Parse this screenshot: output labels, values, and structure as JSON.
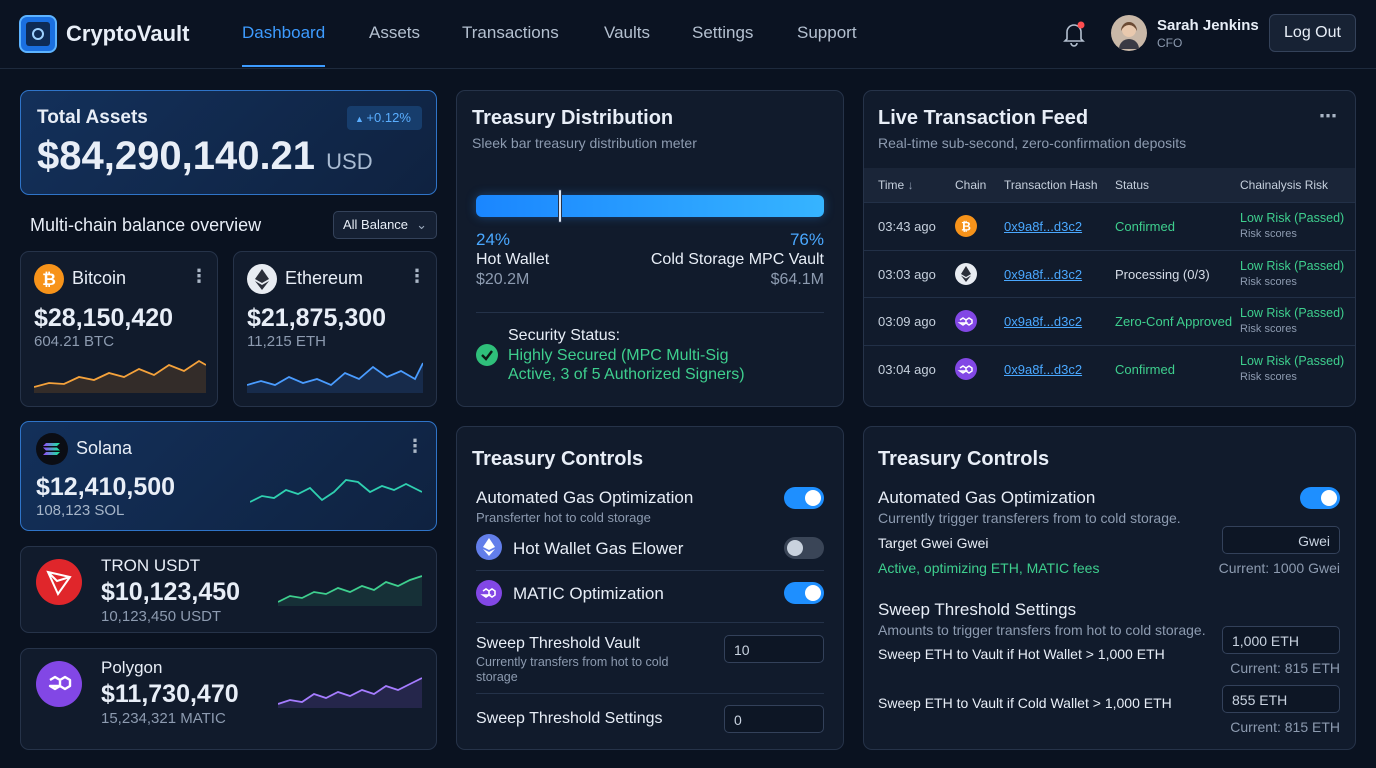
{
  "header": {
    "brand": "CryptoVault",
    "nav": [
      "Dashboard",
      "Assets",
      "Transactions",
      "Vaults",
      "Settings",
      "Support"
    ],
    "active_index": 0,
    "user": {
      "name": "Sarah Jenkins",
      "role": "CFO"
    },
    "logout": "Log Out"
  },
  "total_assets": {
    "title": "Total Assets",
    "change": "+0.12%",
    "amount": "$84,290,140.21",
    "currency": "USD"
  },
  "overview": {
    "title": "Multi-chain balance overview",
    "filter": "All Balance"
  },
  "assets": [
    {
      "name": "Bitcoin",
      "value": "$28,150,420",
      "amount": "604.21 BTC"
    },
    {
      "name": "Ethereum",
      "value": "$21,875,300",
      "amount": "11,215 ETH"
    },
    {
      "name": "Solana",
      "value": "$12,410,500",
      "amount": "108,123 SOL"
    },
    {
      "name": "TRON USDT",
      "value": "$10,123,450",
      "amount": "10,123,450 USDT"
    },
    {
      "name": "Polygon",
      "value": "$11,730,470",
      "amount": "15,234,321 MATIC"
    }
  ],
  "distribution": {
    "title": "Treasury Distribution",
    "subtitle": "Sleek bar treasury distribution meter",
    "hot": {
      "pct": "24%",
      "label": "Hot Wallet",
      "value": "$20.2M"
    },
    "cold": {
      "pct": "76%",
      "label": "Cold Storage MPC Vault",
      "value": "$64.1M"
    },
    "security": {
      "label": "Security Status:",
      "status": "Highly Secured (MPC Multi-Sig Active, 3 of 5 Authorized Signers)"
    }
  },
  "feed": {
    "title": "Live Transaction Feed",
    "subtitle": "Real-time sub-second, zero-confirmation deposits",
    "columns": [
      "Time",
      "Chain",
      "Transaction Hash",
      "Status",
      "Chainalysis Risk"
    ],
    "rows": [
      {
        "time": "03:43 ago",
        "hash": "0x9a8f...d3c2",
        "status": "Confirmed",
        "risk": "Low Risk (Passed)",
        "risk_note": "Risk scores"
      },
      {
        "time": "03:03 ago",
        "hash": "0x9a8f...d3c2",
        "status": "Processing (0/3)",
        "risk": "Low Risk (Passed)",
        "risk_note": "Risk scores"
      },
      {
        "time": "03:09 ago",
        "hash": "0x9a8f...d3c2",
        "status": "Zero-Conf Approved",
        "risk": "Low Risk (Passed)",
        "risk_note": "Risk scores"
      },
      {
        "time": "03:04 ago",
        "hash": "0x9a8f...d3c2",
        "status": "Confirmed",
        "risk": "Low Risk (Passed)",
        "risk_note": "Risk scores"
      }
    ]
  },
  "controls_left": {
    "title": "Treasury Controls",
    "toggles": [
      {
        "label": "Automated Gas Optimization",
        "description": "Pransferter hot to cold storage",
        "enabled": true
      },
      {
        "label": "Hot Wallet Gas Elower",
        "enabled": false
      },
      {
        "label": "MATIC Optimization",
        "enabled": true
      }
    ],
    "inputs": [
      {
        "label": "Sweep Threshold Vault",
        "description": "Currently transfers from hot to cold storage",
        "value": "10"
      },
      {
        "label": "Sweep Threshold Settings",
        "value": "0"
      }
    ]
  },
  "controls_right": {
    "title": "Treasury Controls",
    "gas": {
      "label": "Automated Gas Optimization",
      "description": "Currently trigger transferers from to cold storage.",
      "enabled": true,
      "target_label": "Target Gwei Gwei",
      "input": "Gwei",
      "status": "Active, optimizing ETH, MATIC fees",
      "current": "Current: 1000 Gwei"
    },
    "sweep": {
      "title": "Sweep Threshold Settings",
      "description": "Amounts to trigger transfers from hot to cold storage.",
      "rows": [
        {
          "label": "Sweep ETH to Vault if Hot Wallet > 1,000 ETH",
          "input": "1,000 ETH",
          "current": "Current: 815 ETH"
        },
        {
          "label": "Sweep ETH to Vault if Cold Wallet > 1,000 ETH",
          "input": "855 ETH",
          "current": "Current: 815 ETH"
        }
      ]
    }
  }
}
